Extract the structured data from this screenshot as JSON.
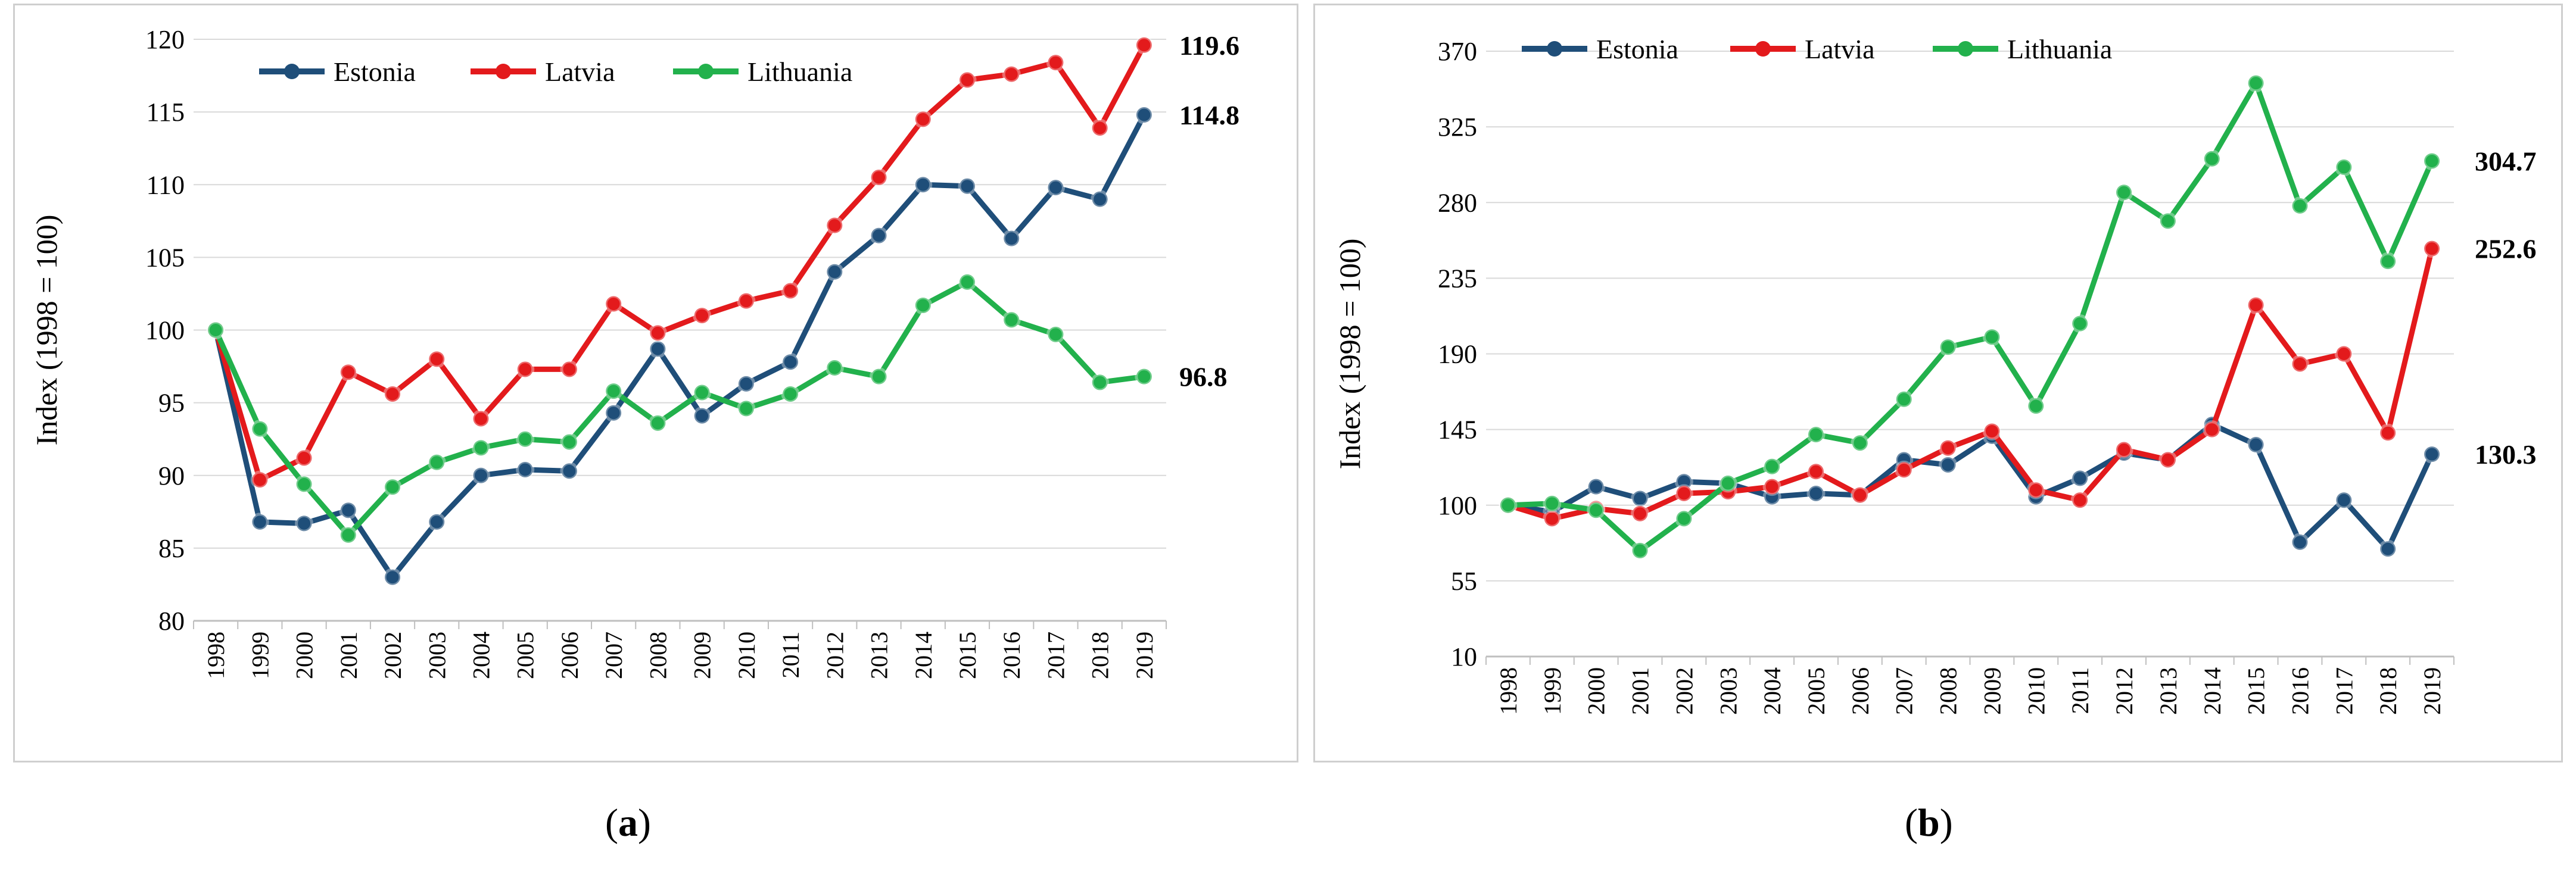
{
  "colors": {
    "Estonia": "#1f4e79",
    "Latvia": "#e31a1c",
    "Lithuania": "#22b14c",
    "grid": "#d9d9d9",
    "axis": "#bfbfbf",
    "text": "#000000"
  },
  "chart_data": [
    {
      "type": "line",
      "panel": "a",
      "ylabel": "Index (1998 = 100)",
      "xlabel": "",
      "title": "",
      "ylim": [
        80,
        120
      ],
      "yticks": [
        80,
        85,
        90,
        95,
        100,
        105,
        110,
        115,
        120
      ],
      "grid": true,
      "legend": "top-left",
      "categories": [
        "1998",
        "1999",
        "2000",
        "2001",
        "2002",
        "2003",
        "2004",
        "2005",
        "2006",
        "2007",
        "2008",
        "2009",
        "2010",
        "2011",
        "2012",
        "2013",
        "2014",
        "2015",
        "2016",
        "2017",
        "2018",
        "2019"
      ],
      "series": [
        {
          "name": "Estonia",
          "values": [
            100,
            86.8,
            86.7,
            87.6,
            83.0,
            86.8,
            90.0,
            90.4,
            90.3,
            94.3,
            98.7,
            94.1,
            96.3,
            97.8,
            104.0,
            106.5,
            110.0,
            109.9,
            106.3,
            109.8,
            109.0,
            114.8
          ]
        },
        {
          "name": "Latvia",
          "values": [
            100,
            89.7,
            91.2,
            97.1,
            95.6,
            98.0,
            93.9,
            97.3,
            97.3,
            101.8,
            99.8,
            101.0,
            102.0,
            102.7,
            107.2,
            110.5,
            114.5,
            117.2,
            117.6,
            118.4,
            113.9,
            119.6
          ]
        },
        {
          "name": "Lithuania",
          "values": [
            100,
            93.2,
            89.4,
            85.9,
            89.2,
            90.9,
            91.9,
            92.5,
            92.3,
            95.8,
            93.6,
            95.7,
            94.6,
            95.6,
            97.4,
            96.8,
            101.7,
            103.3,
            100.7,
            99.7,
            96.4,
            96.8
          ]
        }
      ],
      "end_labels": [
        {
          "series": "Latvia",
          "text": "119.6"
        },
        {
          "series": "Estonia",
          "text": "114.8"
        },
        {
          "series": "Lithuania",
          "text": "96.8"
        }
      ],
      "caption_letter": "a"
    },
    {
      "type": "line",
      "panel": "b",
      "ylabel": "Index (1998 = 100)",
      "xlabel": "",
      "title": "",
      "ylim": [
        10,
        370
      ],
      "yticks": [
        10,
        55,
        100,
        145,
        190,
        235,
        280,
        325,
        370
      ],
      "grid": true,
      "legend": "top-left",
      "categories": [
        "1998",
        "1999",
        "2000",
        "2001",
        "2002",
        "2003",
        "2004",
        "2005",
        "2006",
        "2007",
        "2008",
        "2009",
        "2010",
        "2011",
        "2012",
        "2013",
        "2014",
        "2015",
        "2016",
        "2017",
        "2018",
        "2019"
      ],
      "series": [
        {
          "name": "Estonia",
          "values": [
            100,
            96,
            111,
            104,
            114,
            113,
            105,
            107,
            106,
            127,
            124,
            141,
            105,
            116,
            131,
            127,
            148,
            136,
            78,
            103,
            74,
            130.3
          ]
        },
        {
          "name": "Latvia",
          "values": [
            100,
            92,
            98,
            95,
            107,
            108,
            111,
            120,
            106,
            121,
            134,
            144,
            109,
            103,
            133,
            127,
            145,
            219,
            184,
            190,
            143,
            252.6
          ]
        },
        {
          "name": "Lithuania",
          "values": [
            100,
            101,
            97,
            73,
            92,
            113,
            123,
            142,
            137,
            163,
            194,
            200,
            159,
            208,
            286,
            269,
            306,
            351,
            278,
            301,
            245,
            304.7
          ]
        }
      ],
      "end_labels": [
        {
          "series": "Lithuania",
          "text": "304.7"
        },
        {
          "series": "Latvia",
          "text": "252.6"
        },
        {
          "series": "Estonia",
          "text": "130.3"
        }
      ],
      "caption_letter": "b"
    }
  ],
  "captions": [
    {
      "open": "(",
      "letter": "a",
      "close": ")"
    },
    {
      "open": "(",
      "letter": "b",
      "close": ")"
    }
  ]
}
